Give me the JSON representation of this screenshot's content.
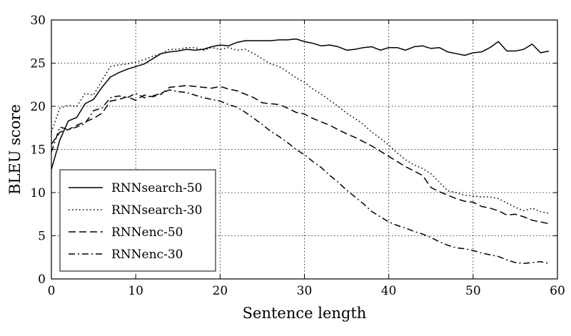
{
  "chart_data": {
    "type": "line",
    "xlabel": "Sentence length",
    "ylabel": "BLEU score",
    "xlim": [
      0,
      60
    ],
    "ylim": [
      0,
      30
    ],
    "xticks": [
      0,
      10,
      20,
      30,
      40,
      50,
      60
    ],
    "yticks": [
      0,
      5,
      10,
      15,
      20,
      25,
      30
    ],
    "grid": true,
    "legend_position": "lower-left",
    "series": [
      {
        "name": "RNNsearch-50",
        "style": "solid",
        "x": [
          0,
          1,
          2,
          3,
          4,
          5,
          6,
          7,
          8,
          9,
          10,
          11,
          12,
          13,
          14,
          15,
          16,
          17,
          18,
          19,
          20,
          21,
          22,
          23,
          24,
          25,
          26,
          27,
          28,
          29,
          30,
          31,
          32,
          33,
          34,
          35,
          36,
          37,
          38,
          39,
          40,
          41,
          42,
          43,
          44,
          45,
          46,
          47,
          48,
          49,
          50,
          51,
          52,
          53,
          54,
          55,
          56,
          57,
          58,
          59
        ],
        "values": [
          12.7,
          16.1,
          18.3,
          18.7,
          20.3,
          20.8,
          22.2,
          23.4,
          23.9,
          24.3,
          24.6,
          24.9,
          25.5,
          26.1,
          26.3,
          26.4,
          26.6,
          26.5,
          26.6,
          26.9,
          27.1,
          27.0,
          27.4,
          27.6,
          27.6,
          27.6,
          27.6,
          27.7,
          27.7,
          27.8,
          27.5,
          27.3,
          27.0,
          27.1,
          26.9,
          26.5,
          26.6,
          26.8,
          26.9,
          26.5,
          26.8,
          26.8,
          26.5,
          26.9,
          27.0,
          26.7,
          26.8,
          26.3,
          26.1,
          25.9,
          26.2,
          26.3,
          26.8,
          27.5,
          26.4,
          26.4,
          26.6,
          27.2,
          26.2,
          26.4
        ]
      },
      {
        "name": "RNNsearch-30",
        "style": "dotted",
        "x": [
          0,
          1,
          2,
          3,
          4,
          5,
          6,
          7,
          8,
          9,
          10,
          11,
          12,
          13,
          14,
          15,
          16,
          17,
          18,
          19,
          20,
          21,
          22,
          23,
          24,
          25,
          26,
          27,
          28,
          29,
          30,
          31,
          32,
          33,
          34,
          35,
          36,
          37,
          38,
          39,
          40,
          41,
          42,
          43,
          44,
          45,
          46,
          47,
          48,
          49,
          50,
          51,
          52,
          53,
          54,
          55,
          56,
          57,
          58,
          59
        ],
        "values": [
          17.0,
          19.8,
          20.1,
          20.0,
          21.5,
          21.3,
          23.0,
          24.6,
          24.8,
          24.9,
          25.1,
          25.4,
          25.8,
          26.1,
          26.6,
          26.6,
          26.8,
          26.8,
          26.5,
          26.8,
          26.6,
          26.8,
          26.5,
          26.6,
          26.1,
          25.5,
          24.9,
          24.6,
          24.0,
          23.3,
          22.8,
          22.0,
          21.4,
          20.7,
          20.0,
          19.2,
          18.6,
          17.9,
          17.0,
          16.3,
          15.5,
          14.6,
          13.8,
          13.2,
          12.8,
          12.2,
          11.2,
          10.2,
          10.0,
          9.7,
          9.6,
          9.5,
          9.5,
          9.3,
          8.8,
          8.3,
          7.9,
          8.2,
          7.8,
          7.6
        ]
      },
      {
        "name": "RNNenc-50",
        "style": "dashed",
        "x": [
          0,
          1,
          2,
          3,
          4,
          5,
          6,
          7,
          8,
          9,
          10,
          11,
          12,
          13,
          14,
          15,
          16,
          17,
          18,
          19,
          20,
          21,
          22,
          23,
          24,
          25,
          26,
          27,
          28,
          29,
          30,
          31,
          32,
          33,
          34,
          35,
          36,
          37,
          38,
          39,
          40,
          41,
          42,
          43,
          44,
          45,
          46,
          47,
          48,
          49,
          50,
          51,
          52,
          53,
          54,
          55,
          56,
          57,
          58,
          59
        ],
        "values": [
          15.6,
          17.0,
          17.3,
          17.8,
          18.2,
          18.6,
          19.2,
          20.6,
          20.8,
          21.1,
          20.7,
          21.3,
          21.1,
          21.4,
          22.2,
          22.3,
          22.4,
          22.3,
          22.2,
          22.1,
          22.3,
          22.0,
          21.8,
          21.4,
          21.0,
          20.4,
          20.3,
          20.2,
          19.8,
          19.3,
          19.1,
          18.6,
          18.2,
          17.8,
          17.3,
          16.8,
          16.4,
          15.9,
          15.4,
          14.8,
          14.2,
          13.6,
          13.0,
          12.5,
          12.0,
          10.6,
          10.1,
          9.7,
          9.3,
          9.0,
          8.9,
          8.4,
          8.2,
          7.9,
          7.4,
          7.5,
          7.2,
          6.8,
          6.6,
          6.4
        ]
      },
      {
        "name": "RNNenc-30",
        "style": "dashdot",
        "x": [
          0,
          1,
          2,
          3,
          4,
          5,
          6,
          7,
          8,
          9,
          10,
          11,
          12,
          13,
          14,
          15,
          16,
          17,
          18,
          19,
          20,
          21,
          22,
          23,
          24,
          25,
          26,
          27,
          28,
          29,
          30,
          31,
          32,
          33,
          34,
          35,
          36,
          37,
          38,
          39,
          40,
          41,
          42,
          43,
          44,
          45,
          46,
          47,
          48,
          49,
          50,
          51,
          52,
          53,
          54,
          55,
          56,
          57,
          58,
          59
        ],
        "values": [
          14.7,
          17.6,
          17.3,
          17.6,
          18.0,
          19.5,
          19.8,
          21.0,
          21.2,
          21.0,
          21.5,
          21.0,
          21.2,
          21.5,
          21.9,
          21.7,
          21.6,
          21.3,
          21.0,
          20.8,
          20.6,
          20.2,
          19.9,
          19.3,
          18.6,
          17.9,
          17.1,
          16.5,
          15.8,
          15.0,
          14.4,
          13.6,
          12.9,
          12.0,
          11.2,
          10.3,
          9.5,
          8.7,
          7.8,
          7.2,
          6.6,
          6.2,
          5.9,
          5.5,
          5.2,
          4.8,
          4.3,
          3.9,
          3.6,
          3.5,
          3.3,
          3.0,
          2.8,
          2.6,
          2.2,
          1.9,
          1.8,
          1.9,
          2.0,
          1.8
        ]
      }
    ]
  }
}
